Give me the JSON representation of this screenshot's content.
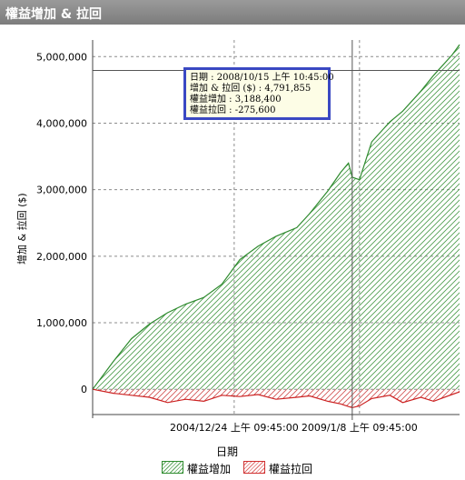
{
  "window": {
    "title": "權益增加 & 拉回"
  },
  "chart_data": {
    "type": "area",
    "ylabel": "增加 & 拉回 ($)",
    "xlabel": "日期",
    "ylim": [
      -380000,
      5250000
    ],
    "y_ticks": [
      0,
      1000000,
      2000000,
      3000000,
      4000000,
      5000000
    ],
    "y_tick_labels": [
      "0",
      "1,000,000",
      "2,000,000",
      "3,000,000",
      "4,000,000",
      "5,000,000"
    ],
    "x_range": [
      "2000/06/01",
      "2012/04/01"
    ],
    "x_ticks": [
      "2004/12/24 09:45:00",
      "2009/01/08 09:45:00"
    ],
    "x_tick_labels": [
      "2004/12/24 上午 09:45:00",
      "2009/1/8 上午 09:45:00"
    ],
    "grid": true,
    "series": [
      {
        "name": "權益增加",
        "color": "#2e8b2e",
        "x": [
          "2000/06/01",
          "2001/02/01",
          "2001/09/01",
          "2002/04/01",
          "2002/11/01",
          "2003/06/01",
          "2004/01/01",
          "2004/08/01",
          "2005/03/01",
          "2005/10/01",
          "2006/05/01",
          "2007/01/01",
          "2007/06/01",
          "2008/01/01",
          "2008/06/01",
          "2008/09/01",
          "2008/10/15",
          "2009/01/08",
          "2009/06/01",
          "2010/01/01",
          "2010/06/01",
          "2011/01/01",
          "2011/06/01",
          "2012/01/01",
          "2012/04/01"
        ],
        "values": [
          0,
          420000,
          760000,
          980000,
          1150000,
          1280000,
          1380000,
          1580000,
          1950000,
          2150000,
          2300000,
          2430000,
          2640000,
          2980000,
          3260000,
          3400000,
          3188400,
          3150000,
          3720000,
          4020000,
          4180000,
          4480000,
          4720000,
          5020000,
          5180000
        ]
      },
      {
        "name": "權益拉回",
        "color": "#cc2222",
        "x": [
          "2000/06/01",
          "2001/02/01",
          "2001/09/01",
          "2002/04/01",
          "2002/11/01",
          "2003/06/01",
          "2004/01/01",
          "2004/08/01",
          "2005/03/01",
          "2005/10/01",
          "2006/05/01",
          "2007/01/01",
          "2007/06/01",
          "2008/01/01",
          "2008/06/01",
          "2008/09/01",
          "2008/10/15",
          "2009/01/08",
          "2009/06/01",
          "2010/01/01",
          "2010/06/01",
          "2011/01/01",
          "2011/06/01",
          "2012/01/01",
          "2012/04/01"
        ],
        "values": [
          0,
          -60000,
          -90000,
          -120000,
          -200000,
          -150000,
          -180000,
          -90000,
          -110000,
          -80000,
          -150000,
          -120000,
          -100000,
          -180000,
          -220000,
          -260000,
          -275600,
          -250000,
          -140000,
          -90000,
          -200000,
          -120000,
          -180000,
          -80000,
          -40000
        ]
      }
    ],
    "crosshair": {
      "x": "2008/10/15",
      "y": 4791855
    }
  },
  "tooltip": {
    "lines": [
      "日期 : 2008/10/15 上午 10:45:00",
      "增加 & 拉回 ($) : 4,791,855",
      "權益增加 : 3,188,400",
      "權益拉回 : -275,600"
    ]
  },
  "legend": {
    "gain_label": "權益增加",
    "drawdown_label": "權益拉回"
  }
}
